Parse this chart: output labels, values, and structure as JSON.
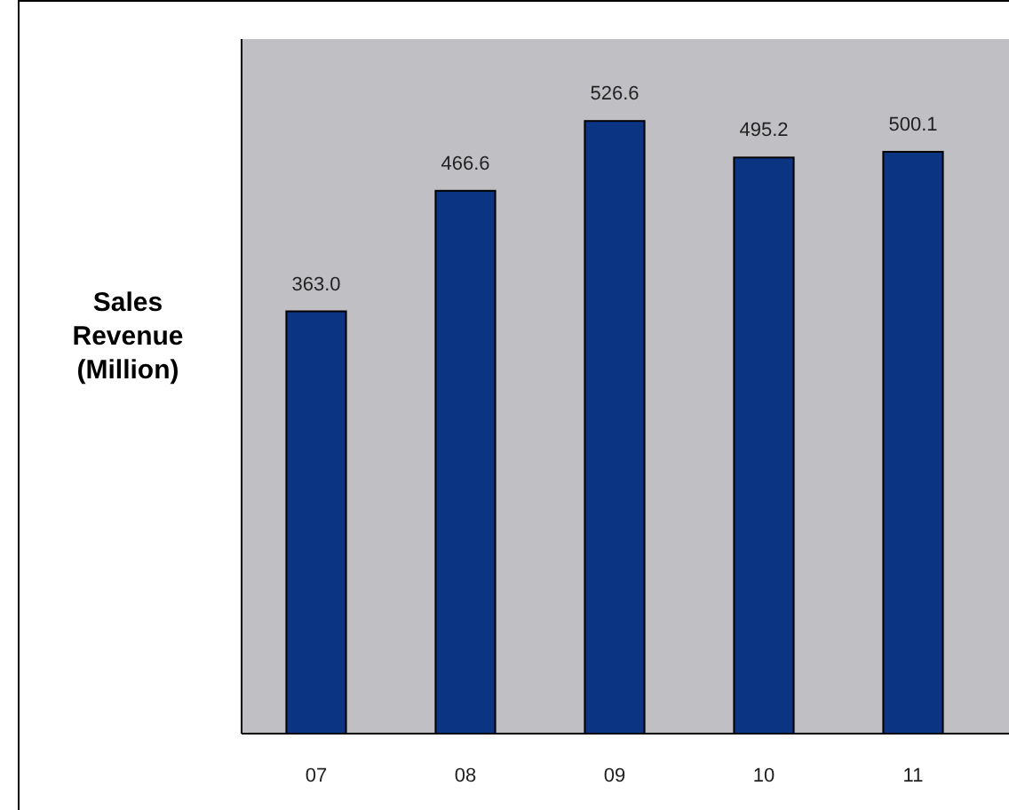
{
  "chart_data": {
    "type": "bar",
    "ylabel": "Sales Revenue (Million)",
    "categories": [
      "07",
      "08",
      "09",
      "10",
      "11"
    ],
    "values": [
      363.0,
      466.6,
      526.6,
      495.2,
      500.1
    ],
    "value_labels": [
      "363.0",
      "466.6",
      "526.6",
      "495.2",
      "500.1"
    ],
    "color": "#0b3582",
    "ylim": [
      0,
      597
    ]
  }
}
